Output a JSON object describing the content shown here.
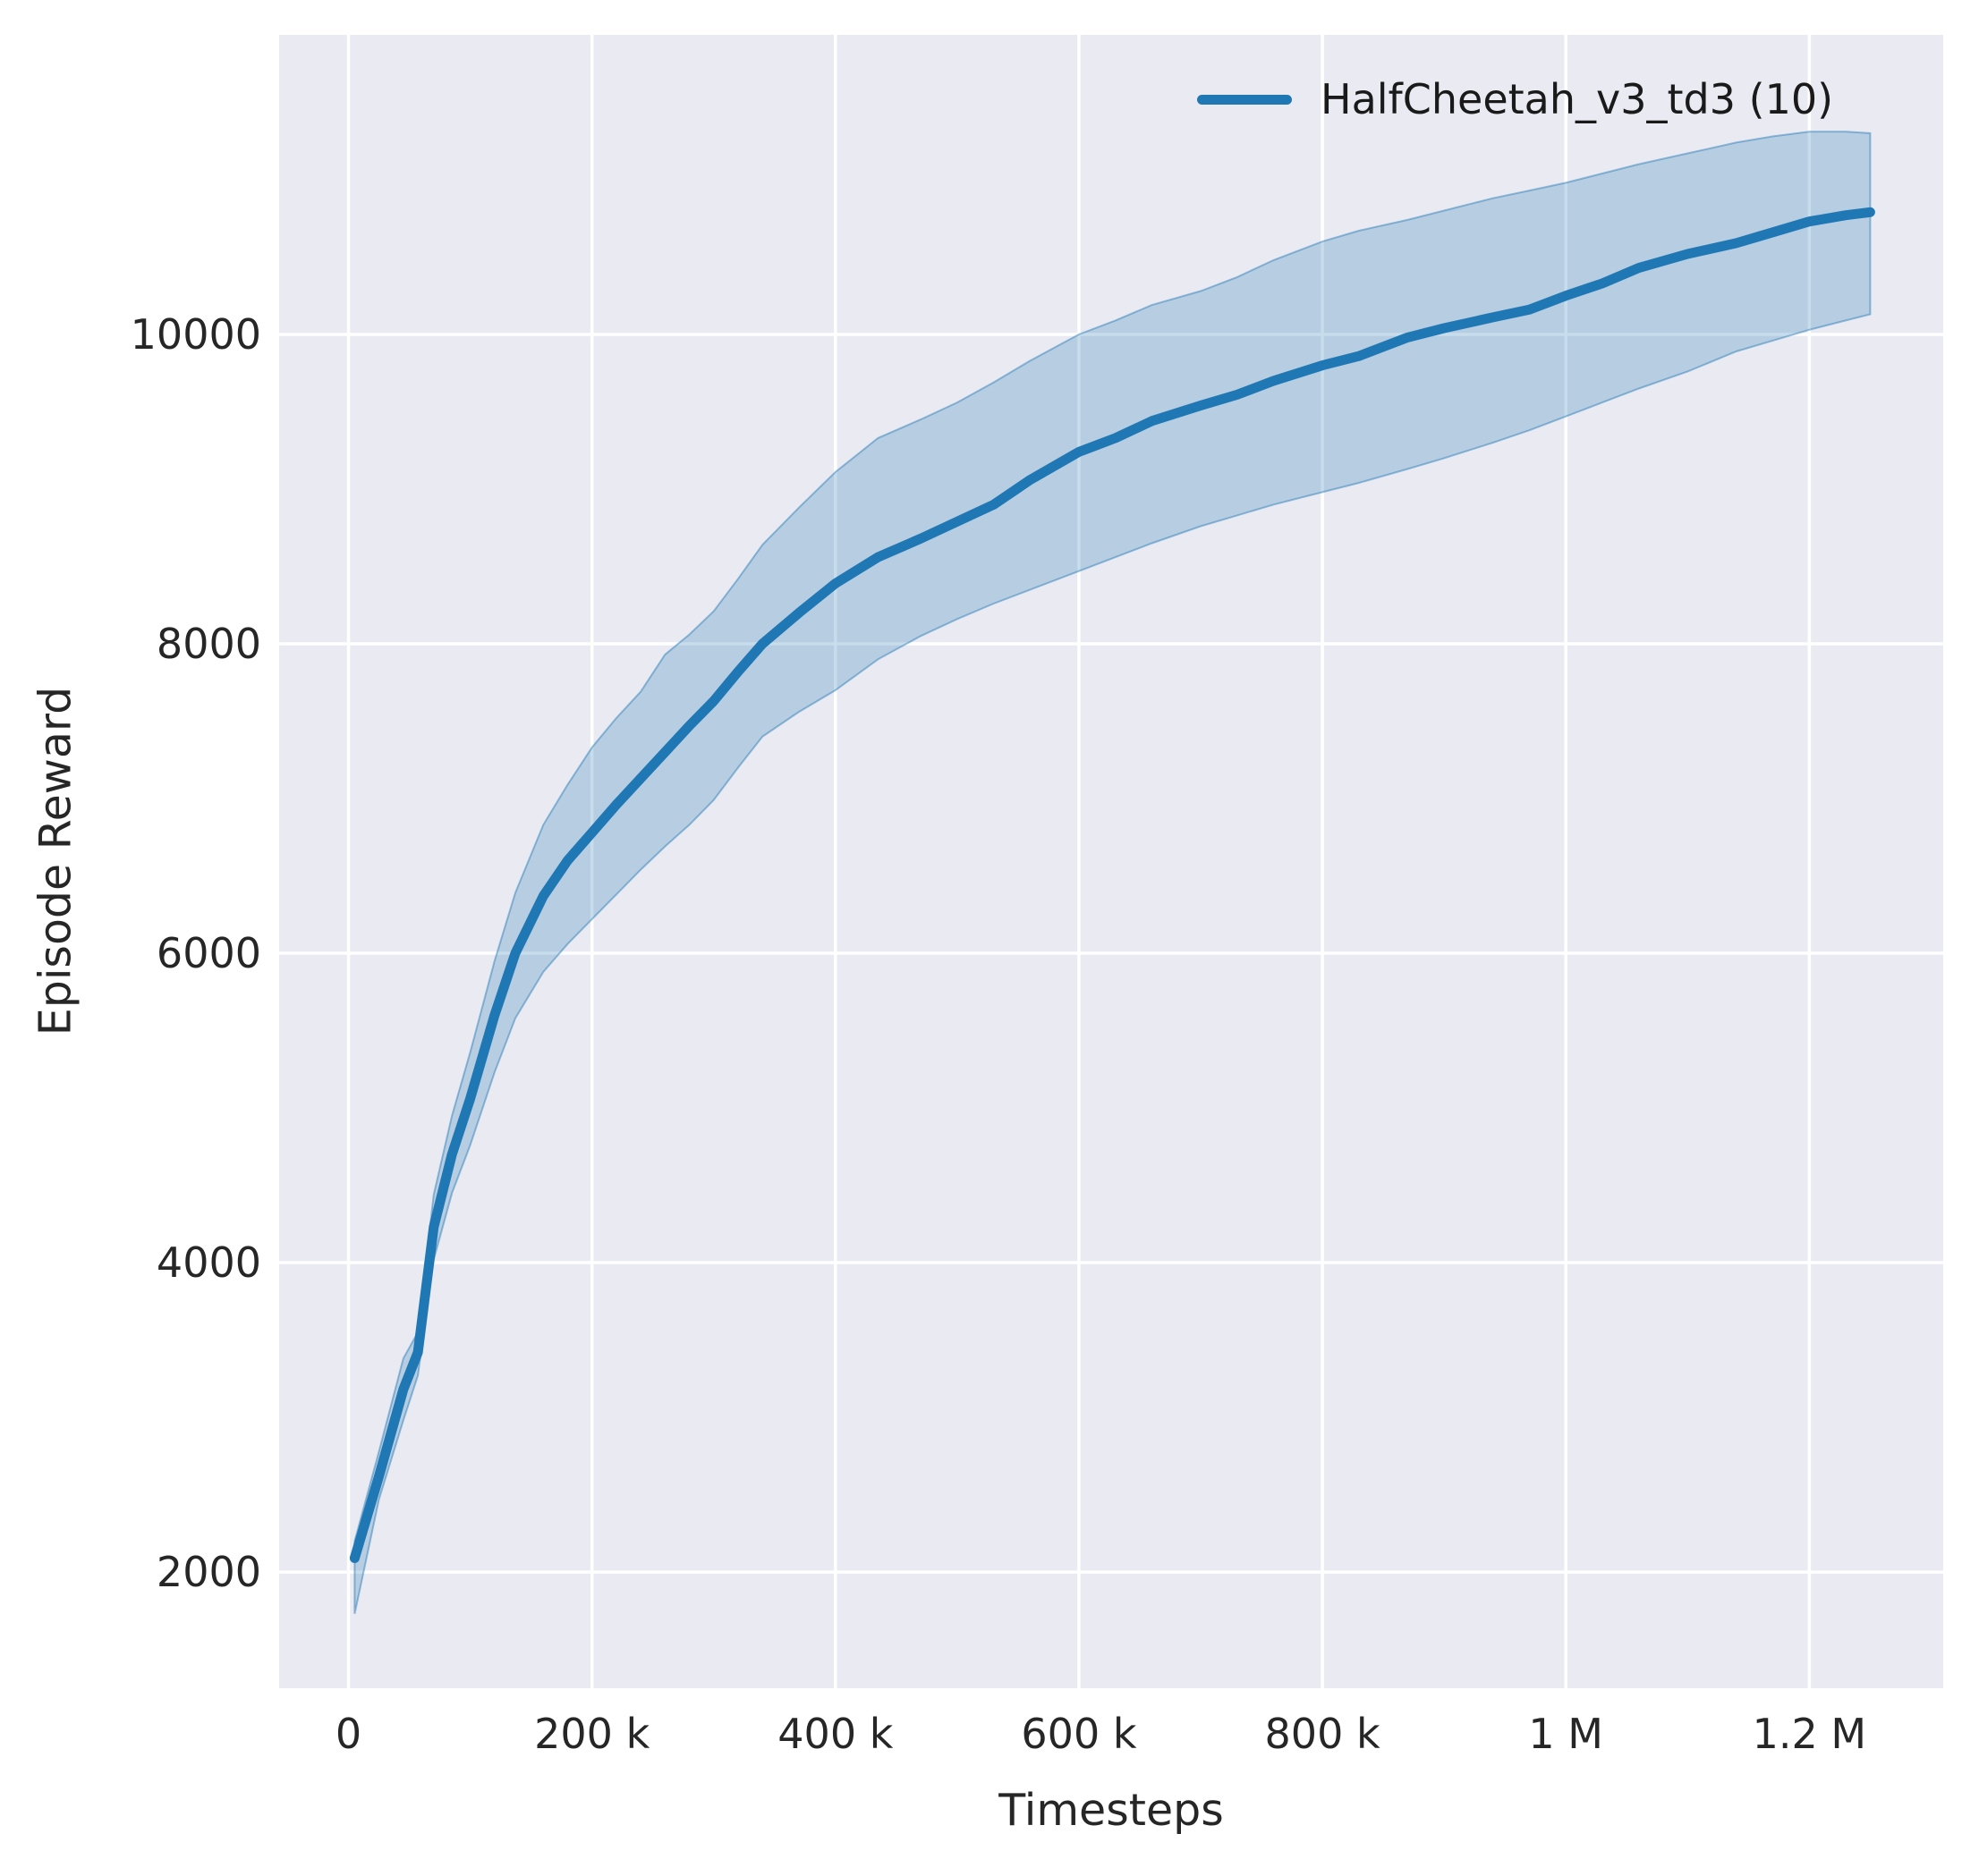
{
  "colors": {
    "line": "#1f77b4",
    "band_fill": "rgba(31,119,180,0.25)",
    "band_edge": "rgba(31,119,180,0.45)",
    "plot_bg": "#eaeaf2",
    "grid": "#ffffff",
    "text": "#262626"
  },
  "legend": {
    "label": "HalfCheetah_v3_td3 (10)"
  },
  "chart_data": {
    "type": "line",
    "title": "",
    "xlabel": "Timesteps",
    "ylabel": "Episode Reward",
    "legend_position": "upper right",
    "grid": true,
    "xlim": [
      -57000,
      1310000
    ],
    "ylim": [
      1249,
      11936
    ],
    "xticks": {
      "values": [
        0,
        200000,
        400000,
        600000,
        800000,
        1000000,
        1200000
      ],
      "labels": [
        "0",
        "200 k",
        "400 k",
        "600 k",
        "800 k",
        "1 M",
        "1.2 M"
      ]
    },
    "yticks": {
      "values": [
        2000,
        4000,
        6000,
        8000,
        10000
      ],
      "labels": [
        "2000",
        "4000",
        "6000",
        "8000",
        "10000"
      ]
    },
    "series": [
      {
        "name": "HalfCheetah_v3_td3 (10)",
        "x": [
          5000,
          25000,
          45000,
          57000,
          70000,
          85000,
          100000,
          120000,
          137000,
          160000,
          180000,
          200000,
          220000,
          240000,
          260000,
          280000,
          300000,
          320000,
          340000,
          370000,
          400000,
          435000,
          470000,
          500000,
          530000,
          560000,
          600000,
          630000,
          660000,
          700000,
          730000,
          760000,
          800000,
          830000,
          870000,
          900000,
          940000,
          970000,
          1000000,
          1030000,
          1060000,
          1100000,
          1140000,
          1170000,
          1200000,
          1230000,
          1250000
        ],
        "mean": [
          2090,
          2620,
          3180,
          3420,
          4230,
          4700,
          5060,
          5600,
          6000,
          6370,
          6600,
          6780,
          6960,
          7130,
          7300,
          7470,
          7630,
          7820,
          8000,
          8200,
          8390,
          8560,
          8680,
          8790,
          8900,
          9060,
          9240,
          9330,
          9440,
          9540,
          9610,
          9700,
          9800,
          9860,
          9980,
          10040,
          10110,
          10160,
          10250,
          10330,
          10430,
          10520,
          10590,
          10660,
          10730,
          10770,
          10790
        ],
        "lower": [
          1730,
          2470,
          2980,
          3270,
          4020,
          4450,
          4760,
          5230,
          5580,
          5880,
          6060,
          6220,
          6380,
          6540,
          6690,
          6830,
          6990,
          7200,
          7400,
          7560,
          7700,
          7900,
          8050,
          8160,
          8260,
          8350,
          8470,
          8560,
          8650,
          8760,
          8830,
          8900,
          8980,
          9040,
          9130,
          9200,
          9300,
          9380,
          9470,
          9560,
          9650,
          9760,
          9890,
          9960,
          10030,
          10090,
          10130
        ],
        "upper": [
          2200,
          2780,
          3380,
          3550,
          4440,
          4950,
          5360,
          5950,
          6390,
          6830,
          7090,
          7330,
          7520,
          7690,
          7930,
          8060,
          8210,
          8420,
          8640,
          8880,
          9110,
          9330,
          9450,
          9560,
          9690,
          9830,
          10000,
          10090,
          10190,
          10280,
          10370,
          10480,
          10600,
          10670,
          10740,
          10800,
          10880,
          10930,
          10980,
          11040,
          11100,
          11170,
          11240,
          11280,
          11310,
          11310,
          11300
        ]
      }
    ]
  }
}
